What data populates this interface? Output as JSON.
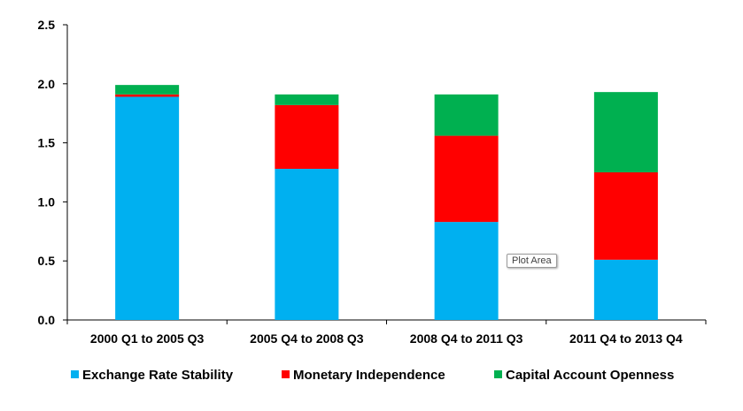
{
  "chart_data": {
    "type": "bar",
    "stacked": true,
    "categories": [
      "2000 Q1 to 2005 Q3",
      "2005 Q4 to 2008 Q3",
      "2008 Q4 to 2011 Q3",
      "2011 Q4 to 2013 Q4"
    ],
    "series": [
      {
        "name": "Exchange Rate Stability",
        "color": "#00B0F0",
        "values": [
          1.89,
          1.28,
          0.83,
          0.51
        ]
      },
      {
        "name": "Monetary Independence",
        "color": "#FF0000",
        "values": [
          0.02,
          0.54,
          0.73,
          0.74
        ]
      },
      {
        "name": "Capital Account Openness",
        "color": "#00B050",
        "values": [
          0.08,
          0.09,
          0.35,
          0.68
        ]
      }
    ],
    "yticks": [
      "0.0",
      "0.5",
      "1.0",
      "1.5",
      "2.0",
      "2.5"
    ],
    "ylim": [
      0,
      2.5
    ],
    "title": "",
    "xlabel": "",
    "ylabel": "",
    "legend_position": "bottom"
  },
  "tooltip": {
    "label": "Plot Area"
  }
}
